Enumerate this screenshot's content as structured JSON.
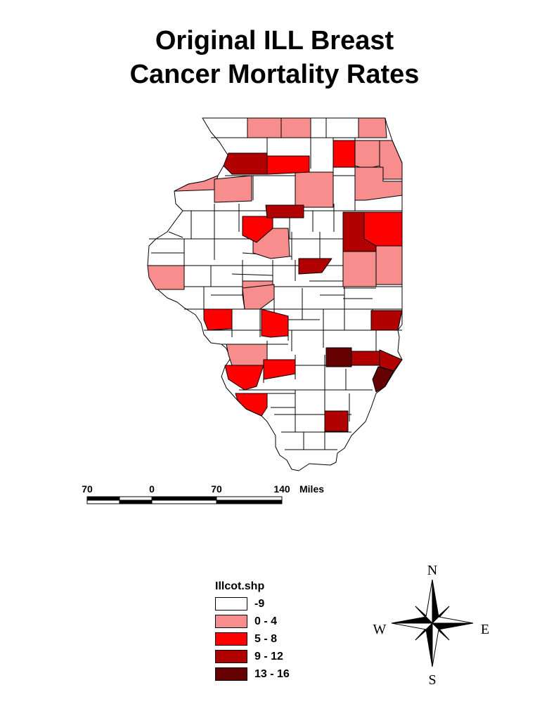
{
  "title": [
    "Original ILL Breast",
    "Cancer Mortality Rates"
  ],
  "scale": {
    "labels": [
      "70",
      "0",
      "70",
      "140"
    ],
    "unit": "Miles"
  },
  "legend": {
    "title": "Illcot.shp",
    "classes": [
      {
        "label": "-9",
        "color": "#ffffff"
      },
      {
        "label": "0 - 4",
        "color": "#f78d8d"
      },
      {
        "label": "5 - 8",
        "color": "#ff0000"
      },
      {
        "label": "9 - 12",
        "color": "#b00000"
      },
      {
        "label": "13 - 16",
        "color": "#640000"
      }
    ]
  },
  "compass": {
    "n": "N",
    "s": "S",
    "e": "E",
    "w": "W"
  }
}
